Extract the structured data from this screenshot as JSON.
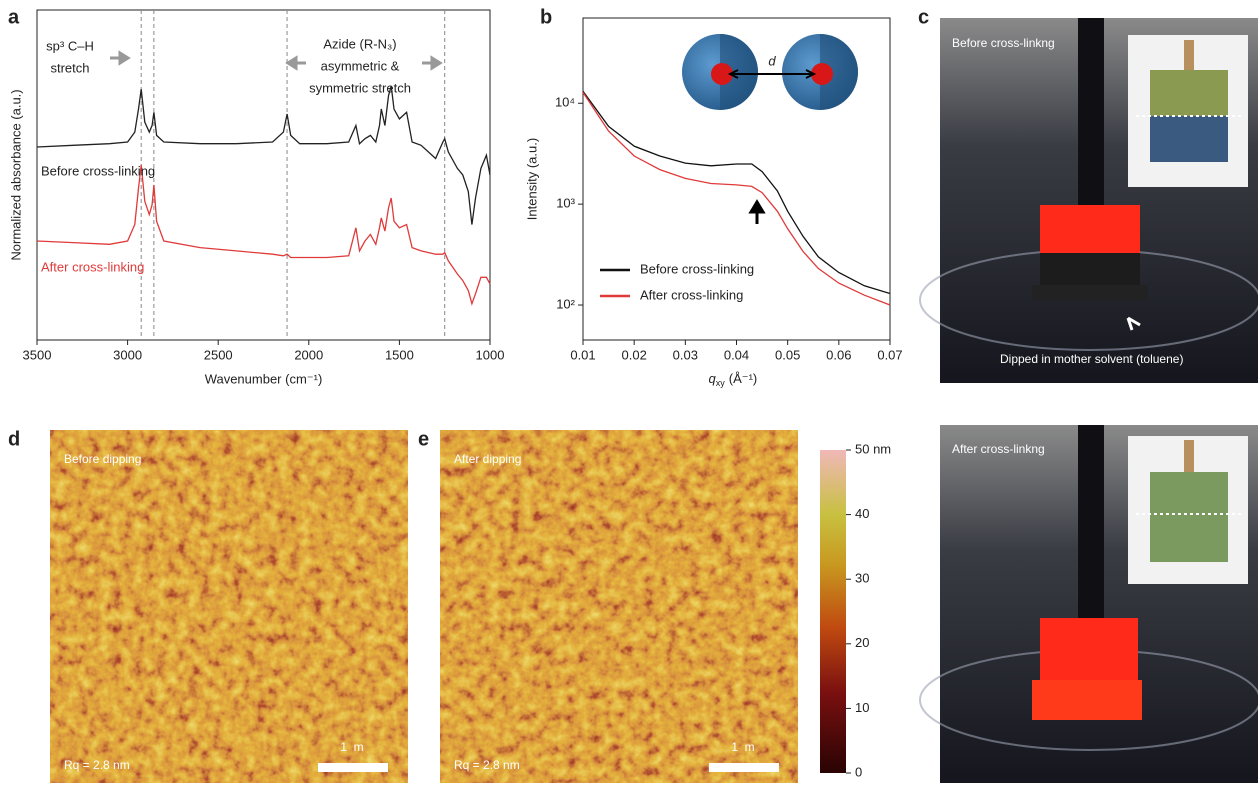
{
  "panel_labels": [
    "a",
    "b",
    "c",
    "d",
    "e"
  ],
  "chart_data": [
    {
      "type": "line",
      "x_label": "Wavenumber (cm⁻¹)",
      "y_label": "Normalized absorbance (a.u.)",
      "xlim": [
        3500,
        1000
      ],
      "xticks": [
        3500,
        3000,
        2500,
        2000,
        1500,
        1000
      ],
      "ylim": [
        0,
        10
      ],
      "x": [
        3500,
        3300,
        3100,
        3000,
        2960,
        2940,
        2925,
        2905,
        2880,
        2865,
        2855,
        2840,
        2800,
        2600,
        2400,
        2200,
        2140,
        2120,
        2100,
        2050,
        1900,
        1780,
        1740,
        1720,
        1690,
        1660,
        1630,
        1610,
        1600,
        1580,
        1560,
        1545,
        1530,
        1500,
        1460,
        1430,
        1380,
        1300,
        1260,
        1250,
        1230,
        1180,
        1150,
        1120,
        1100,
        1080,
        1050,
        1020,
        1000
      ],
      "series": [
        {
          "name": "Before cross-linking",
          "color": "#222222",
          "values": [
            5.85,
            5.9,
            5.95,
            6.0,
            6.3,
            7.0,
            7.6,
            6.6,
            6.3,
            6.5,
            6.9,
            6.2,
            6.0,
            5.95,
            5.95,
            6.0,
            6.3,
            6.85,
            6.2,
            5.95,
            5.95,
            6.0,
            6.5,
            5.95,
            6.1,
            6.2,
            6.0,
            6.5,
            7.0,
            6.5,
            7.4,
            7.7,
            7.0,
            6.7,
            6.9,
            6.0,
            5.9,
            5.5,
            6.0,
            6.1,
            5.7,
            5.2,
            5.0,
            4.5,
            3.5,
            4.3,
            5.2,
            5.6,
            5.0
          ]
        },
        {
          "name": "After cross-linking",
          "color": "#e03a3a",
          "values": [
            3.0,
            2.95,
            2.9,
            3.0,
            3.5,
            4.6,
            5.3,
            4.2,
            3.8,
            4.1,
            4.7,
            3.6,
            3.0,
            2.8,
            2.7,
            2.6,
            2.55,
            2.6,
            2.5,
            2.5,
            2.5,
            2.55,
            3.4,
            2.7,
            3.0,
            3.2,
            2.9,
            3.4,
            3.7,
            3.3,
            4.0,
            4.3,
            3.6,
            3.4,
            3.5,
            2.8,
            2.7,
            2.6,
            2.6,
            2.65,
            2.4,
            2.0,
            1.8,
            1.5,
            1.1,
            1.4,
            1.9,
            1.9,
            1.7
          ]
        }
      ],
      "reference_lines": [
        2925,
        2855,
        2120,
        1250
      ],
      "annotations": [
        "sp³ C–H",
        "stretch",
        "Azide (R-N₃)",
        "asymmetric &",
        "symmetric stretch"
      ]
    },
    {
      "type": "line",
      "log_y": true,
      "x_label": {
        "symbol": "q",
        "subscript": "xy",
        "unit": "(Å⁻¹)"
      },
      "y_label": "Intensity (a.u.)",
      "xlim": [
        0.01,
        0.07
      ],
      "xticks": [
        0.01,
        0.02,
        0.03,
        0.04,
        0.05,
        0.06,
        0.07
      ],
      "ylim": [
        45,
        70000
      ],
      "yticks": [
        {
          "value": 100,
          "label": "10²"
        },
        {
          "value": 1000,
          "label": "10³"
        },
        {
          "value": 10000,
          "label": "10⁴"
        }
      ],
      "x": [
        0.01,
        0.015,
        0.02,
        0.025,
        0.03,
        0.035,
        0.04,
        0.043,
        0.045,
        0.048,
        0.05,
        0.053,
        0.056,
        0.06,
        0.065,
        0.07
      ],
      "series": [
        {
          "name": "Before cross-linking",
          "color": "#111111",
          "values": [
            13150,
            5900,
            3750,
            3000,
            2550,
            2400,
            2500,
            2500,
            2100,
            1350,
            850,
            480,
            300,
            210,
            155,
            130
          ]
        },
        {
          "name": "After cross-linking",
          "color": "#e03a3a",
          "values": [
            12800,
            5300,
            3000,
            2200,
            1800,
            1600,
            1550,
            1500,
            1300,
            850,
            570,
            340,
            230,
            165,
            125,
            100
          ]
        }
      ],
      "legend": "lower left",
      "inset_label": "d"
    }
  ],
  "photos": [
    {
      "caption": "Before cross-linkng",
      "note": "Dipped in mother solvent (toluene)"
    },
    {
      "caption": "After cross-linkng"
    }
  ],
  "afm": [
    {
      "caption": "Before dipping",
      "roughness": "Rq = 2.8 nm",
      "scale_bar": "1  m"
    },
    {
      "caption": "After dipping",
      "roughness": "Rq = 2.8 nm",
      "scale_bar": "1  m"
    }
  ],
  "colorbar": {
    "range": [
      0,
      50
    ],
    "ticks": [
      0,
      10,
      20,
      30,
      40,
      {
        "value": 50,
        "label": "50 nm"
      }
    ]
  }
}
